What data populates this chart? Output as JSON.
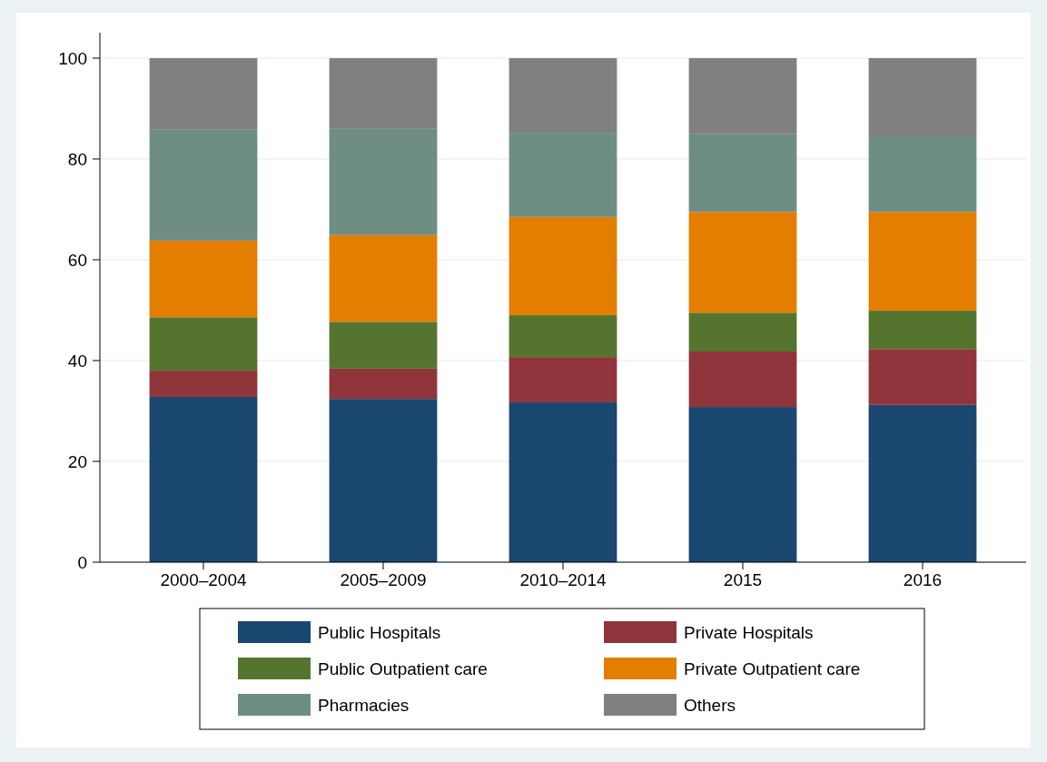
{
  "chart_data": {
    "type": "bar",
    "stacked": true,
    "categories": [
      "2000–2004",
      "2005–2009",
      "2010–2014",
      "2015",
      "2016"
    ],
    "series": [
      {
        "name": "Public Hospitals",
        "color": "#1a476f",
        "values": [
          32.8,
          32.4,
          31.7,
          30.8,
          31.2
        ]
      },
      {
        "name": "Private Hospitals",
        "color": "#90353b",
        "values": [
          5.2,
          6.0,
          9.0,
          11.0,
          11.1
        ]
      },
      {
        "name": "Public Outpatient care",
        "color": "#55752f",
        "values": [
          10.6,
          9.3,
          8.3,
          7.7,
          7.6
        ]
      },
      {
        "name": "Private Outpatient care",
        "color": "#e37e00",
        "values": [
          15.2,
          17.2,
          19.5,
          20.0,
          19.6
        ]
      },
      {
        "name": "Pharmacies",
        "color": "#6e8e84",
        "values": [
          22.0,
          21.2,
          16.7,
          15.4,
          15.0
        ]
      },
      {
        "name": "Others",
        "color": "#808080",
        "values": [
          14.2,
          13.9,
          14.8,
          15.1,
          15.5
        ]
      }
    ],
    "ylim": [
      0,
      100
    ],
    "yticks": [
      0,
      20,
      40,
      60,
      80,
      100
    ],
    "grid": "y",
    "legend": "bottom"
  }
}
